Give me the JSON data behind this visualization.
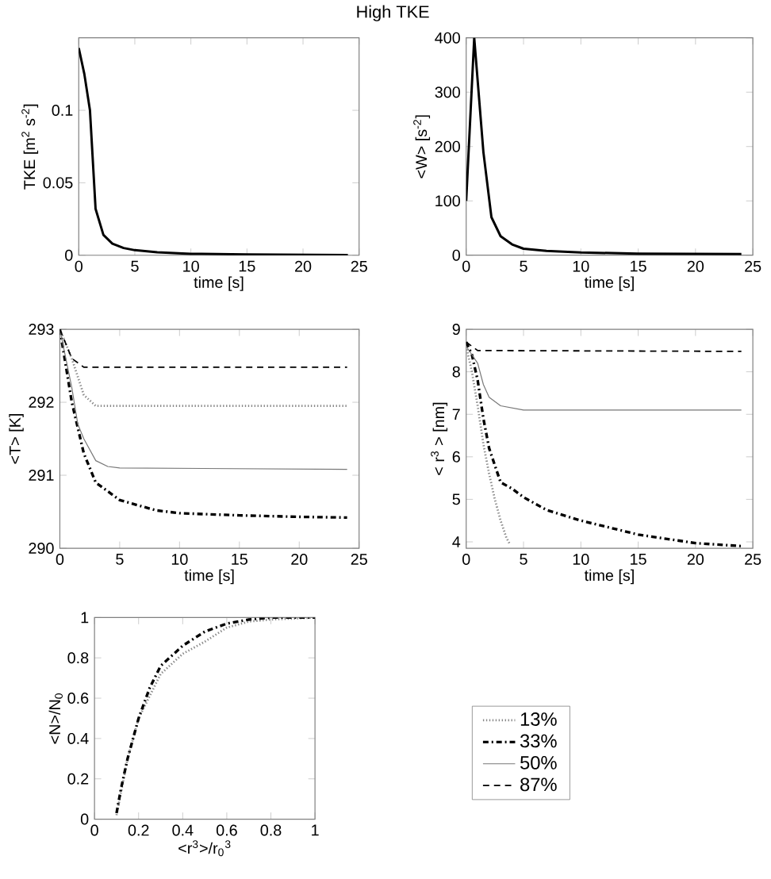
{
  "chart_data": [
    {
      "type": "line",
      "title": "High TKE",
      "xlabel": "time [s]",
      "ylabel": "TKE [m$^{2}$ s$^{-2}$]",
      "xlim": [
        0,
        25
      ],
      "ylim": [
        0,
        0.15
      ],
      "xticks": [
        0,
        5,
        10,
        15,
        20,
        25
      ],
      "yticks": [
        0,
        0.05,
        0.1
      ],
      "color": "#000000",
      "x": [
        0,
        0.5,
        1,
        1.5,
        2.2,
        3,
        4,
        5,
        7,
        10,
        15,
        24
      ],
      "values": [
        0.143,
        0.125,
        0.1,
        0.032,
        0.014,
        0.008,
        0.005,
        0.0035,
        0.002,
        0.001,
        0.0005,
        0.0002
      ]
    },
    {
      "type": "line",
      "xlabel": "time [s]",
      "ylabel": "<W> [s$^{-2}$]",
      "xlim": [
        0,
        25
      ],
      "ylim": [
        0,
        400
      ],
      "xticks": [
        0,
        5,
        10,
        15,
        20,
        25
      ],
      "yticks": [
        0,
        100,
        200,
        300,
        400
      ],
      "color": "#000000",
      "x": [
        0,
        0.7,
        1.5,
        2.2,
        3,
        4,
        5,
        7,
        10,
        15,
        24
      ],
      "values": [
        100,
        400,
        190,
        70,
        35,
        20,
        12,
        8,
        5,
        3,
        2
      ]
    },
    {
      "type": "line",
      "xlabel": "time [s]",
      "ylabel": "<T> [K]",
      "xlim": [
        0,
        25
      ],
      "ylim": [
        290,
        293
      ],
      "xticks": [
        0,
        5,
        10,
        15,
        20,
        25
      ],
      "yticks": [
        290,
        291,
        292,
        293
      ],
      "series": [
        {
          "color": "#888888",
          "line_style": "dotted",
          "x": [
            0,
            1,
            2,
            3,
            24
          ],
          "values": [
            293,
            292.6,
            292.1,
            291.95,
            291.95
          ]
        },
        {
          "color": "#000000",
          "line_style": "dashdot",
          "x": [
            0,
            1,
            2,
            3,
            5,
            8,
            10,
            15,
            20,
            24
          ],
          "values": [
            293,
            292,
            291.3,
            290.9,
            290.66,
            290.52,
            290.48,
            290.45,
            290.43,
            290.42
          ]
        },
        {
          "color": "#777777",
          "line_style": "solid",
          "x": [
            0,
            1,
            1.5,
            2,
            3,
            4,
            5,
            24
          ],
          "values": [
            293,
            292.2,
            291.7,
            291.5,
            291.2,
            291.12,
            291.1,
            291.08
          ]
        },
        {
          "color": "#000000",
          "line_style": "dashed",
          "x": [
            0,
            0.5,
            1,
            2,
            24
          ],
          "values": [
            293,
            292.8,
            292.6,
            292.48,
            292.48
          ]
        }
      ]
    },
    {
      "type": "line",
      "xlabel": "time [s]",
      "ylabel": "< r$^{3}$ > [nm]",
      "xlim": [
        0,
        25
      ],
      "ylim": [
        3.85,
        9
      ],
      "xticks": [
        0,
        5,
        10,
        15,
        20,
        25
      ],
      "yticks": [
        4,
        5,
        6,
        7,
        8,
        9
      ],
      "legend": "bottom",
      "series": [
        {
          "name": "13%",
          "color": "#888888",
          "line_style": "dotted",
          "x": [
            0,
            0.5,
            1,
            1.5,
            2,
            2.5,
            3,
            3.5,
            3.8
          ],
          "values": [
            8.6,
            8.0,
            7.2,
            6.3,
            5.6,
            5.0,
            4.5,
            4.1,
            3.95
          ]
        },
        {
          "name": "33%",
          "color": "#000000",
          "line_style": "dashdot",
          "x": [
            0,
            0.5,
            1,
            1.5,
            2,
            3,
            4,
            5,
            7,
            10,
            15,
            20,
            24
          ],
          "values": [
            8.7,
            8.4,
            7.8,
            6.9,
            6.2,
            5.4,
            5.25,
            5.05,
            4.75,
            4.5,
            4.17,
            3.97,
            3.9
          ]
        },
        {
          "name": "50%",
          "color": "#777777",
          "line_style": "solid",
          "x": [
            0,
            1,
            1.5,
            2,
            3,
            5,
            24
          ],
          "values": [
            8.6,
            8.2,
            7.7,
            7.4,
            7.2,
            7.1,
            7.1
          ]
        },
        {
          "name": "87%",
          "color": "#000000",
          "line_style": "dashed",
          "x": [
            0,
            1,
            24
          ],
          "values": [
            8.7,
            8.5,
            8.48
          ]
        }
      ]
    },
    {
      "type": "line",
      "xlabel": "<r$^{3}$>/r$_{0}$$^{3}$",
      "ylabel": "<N>/N$_{0}$",
      "xlim": [
        0,
        1
      ],
      "ylim": [
        0,
        1
      ],
      "xticks": [
        0,
        0.2,
        0.4,
        0.6,
        0.8,
        1
      ],
      "yticks": [
        0,
        0.2,
        0.4,
        0.6,
        0.8,
        1
      ],
      "series": [
        {
          "color": "#888888",
          "line_style": "dotted",
          "x": [
            0.1,
            0.15,
            0.2,
            0.3,
            0.4,
            0.5,
            0.6,
            0.7,
            0.8,
            1
          ],
          "values": [
            0.02,
            0.3,
            0.5,
            0.72,
            0.82,
            0.88,
            0.95,
            0.98,
            0.99,
            1
          ]
        },
        {
          "color": "#000000",
          "line_style": "dashdot",
          "x": [
            0.1,
            0.12,
            0.15,
            0.2,
            0.25,
            0.3,
            0.4,
            0.5,
            0.6,
            0.7,
            0.8,
            1
          ],
          "values": [
            0.03,
            0.15,
            0.3,
            0.5,
            0.65,
            0.76,
            0.86,
            0.93,
            0.97,
            0.99,
            1,
            1
          ]
        }
      ]
    }
  ]
}
